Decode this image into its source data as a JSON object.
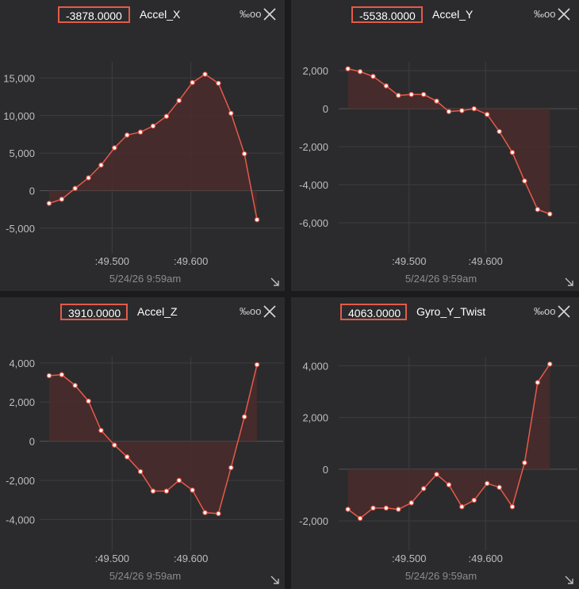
{
  "colors": {
    "line": "#e8594a",
    "fill": "#4a2c2b",
    "grid": "#3e3e40",
    "zero": "#555557"
  },
  "icons": {
    "percent": "per-mille-icon",
    "close": "close-x-icon",
    "resize": "resize-arrow-icon"
  },
  "panels": [
    {
      "value": "-3878.0000",
      "name": "Accel_X",
      "unit": "‰",
      "date": "5/24/26 9:59am"
    },
    {
      "value": "-5538.0000",
      "name": "Accel_Y",
      "unit": "‰",
      "date": "5/24/26 9:59am"
    },
    {
      "value": "3910.0000",
      "name": "Accel_Z",
      "unit": "‰",
      "date": "5/24/26 9:59am"
    },
    {
      "value": "4063.0000",
      "name": "Gyro_Y_Twist",
      "unit": "‰",
      "date": "5/24/26 9:59am"
    }
  ],
  "chart_data": [
    {
      "type": "area",
      "title": "Accel_X",
      "x": [
        49.42,
        49.436,
        49.453,
        49.47,
        49.486,
        49.503,
        49.519,
        49.536,
        49.552,
        49.569,
        49.585,
        49.602,
        49.618,
        49.635,
        49.651,
        49.668,
        49.684
      ],
      "y": [
        -1700,
        -1150,
        300,
        1700,
        3400,
        5700,
        7400,
        7800,
        8600,
        9900,
        12000,
        14400,
        15500,
        14300,
        10300,
        4900,
        -3878
      ],
      "xlim": [
        49.41,
        49.69
      ],
      "ylim": [
        -6500,
        18000
      ],
      "xticks": [
        49.5,
        49.6
      ],
      "xtick_labels": [
        ":49.500",
        ":49.600"
      ],
      "yticks": [
        -5000,
        0,
        5000,
        10000,
        15000
      ],
      "ytick_labels": [
        "-5,000",
        "0",
        "5,000",
        "10,000",
        "15,000"
      ],
      "grid": true
    },
    {
      "type": "area",
      "title": "Accel_Y",
      "x": [
        49.42,
        49.436,
        49.453,
        49.47,
        49.486,
        49.503,
        49.519,
        49.536,
        49.552,
        49.569,
        49.585,
        49.602,
        49.618,
        49.635,
        49.651,
        49.668,
        49.684
      ],
      "y": [
        2100,
        1950,
        1700,
        1200,
        700,
        750,
        750,
        400,
        -150,
        -100,
        0,
        -300,
        -1200,
        -2300,
        -3800,
        -5300,
        -5538
      ],
      "xlim": [
        49.41,
        49.69
      ],
      "ylim": [
        -7000,
        2800
      ],
      "xticks": [
        49.5,
        49.6
      ],
      "xtick_labels": [
        ":49.500",
        ":49.600"
      ],
      "yticks": [
        -6000,
        -4000,
        -2000,
        0,
        2000
      ],
      "ytick_labels": [
        "-6,000",
        "-4,000",
        "-2,000",
        "0",
        "2,000"
      ],
      "grid": true
    },
    {
      "type": "area",
      "title": "Accel_Z",
      "x": [
        49.42,
        49.436,
        49.453,
        49.47,
        49.486,
        49.503,
        49.519,
        49.536,
        49.552,
        49.569,
        49.585,
        49.602,
        49.618,
        49.635,
        49.651,
        49.668,
        49.684
      ],
      "y": [
        3350,
        3400,
        2850,
        2050,
        550,
        -200,
        -800,
        -1550,
        -2550,
        -2550,
        -2000,
        -2500,
        -3650,
        -3700,
        -1350,
        1250,
        3910
      ],
      "xlim": [
        49.41,
        49.69
      ],
      "ylim": [
        -5000,
        4600
      ],
      "xticks": [
        49.5,
        49.6
      ],
      "xtick_labels": [
        ":49.500",
        ":49.600"
      ],
      "yticks": [
        -4000,
        -2000,
        0,
        2000,
        4000
      ],
      "ytick_labels": [
        "-4,000",
        "-2,000",
        "0",
        "2,000",
        "4,000"
      ],
      "grid": true
    },
    {
      "type": "area",
      "title": "Gyro_Y_Twist",
      "x": [
        49.42,
        49.436,
        49.453,
        49.47,
        49.486,
        49.503,
        49.519,
        49.536,
        49.552,
        49.569,
        49.585,
        49.602,
        49.618,
        49.635,
        49.651,
        49.668,
        49.684
      ],
      "y": [
        -1550,
        -1900,
        -1500,
        -1500,
        -1550,
        -1300,
        -750,
        -200,
        -600,
        -1450,
        -1200,
        -550,
        -700,
        -1450,
        250,
        3350,
        4063
      ],
      "xlim": [
        49.41,
        49.69
      ],
      "ylim": [
        -2700,
        4500
      ],
      "xticks": [
        49.5,
        49.6
      ],
      "xtick_labels": [
        ":49.500",
        ":49.600"
      ],
      "yticks": [
        -2000,
        0,
        2000,
        4000
      ],
      "ytick_labels": [
        "-2,000",
        "0",
        "2,000",
        "4,000"
      ],
      "grid": true
    }
  ]
}
